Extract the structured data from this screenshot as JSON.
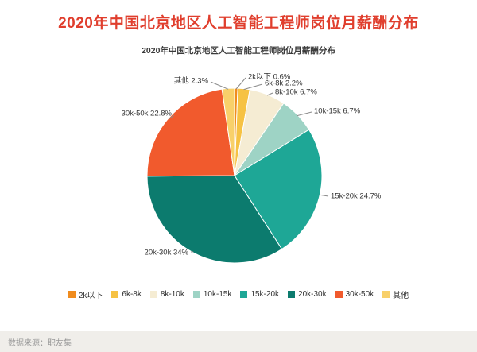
{
  "page": {
    "title": "2020年中国北京地区人工智能工程师岗位月薪酬分布",
    "source": "数据来源：职友集"
  },
  "chart_data": {
    "type": "pie",
    "title": "2020年中国北京地区人工智能工程师岗位月薪酬分布",
    "categories": [
      "2k以下",
      "6k-8k",
      "8k-10k",
      "10k-15k",
      "15k-20k",
      "20k-30k",
      "30k-50k",
      "其他"
    ],
    "values": [
      0.6,
      2.2,
      6.7,
      6.7,
      24.7,
      34,
      22.8,
      2.3
    ],
    "unit": "%",
    "colors": [
      "#f08c1e",
      "#f6c243",
      "#f5ecd3",
      "#9ed3c5",
      "#1ea796",
      "#0c7b6e",
      "#f15a2d",
      "#f8d06a"
    ],
    "start_angle": 0,
    "direction": "clockwise",
    "legend_position": "bottom",
    "title_color": "#e03e2d"
  }
}
